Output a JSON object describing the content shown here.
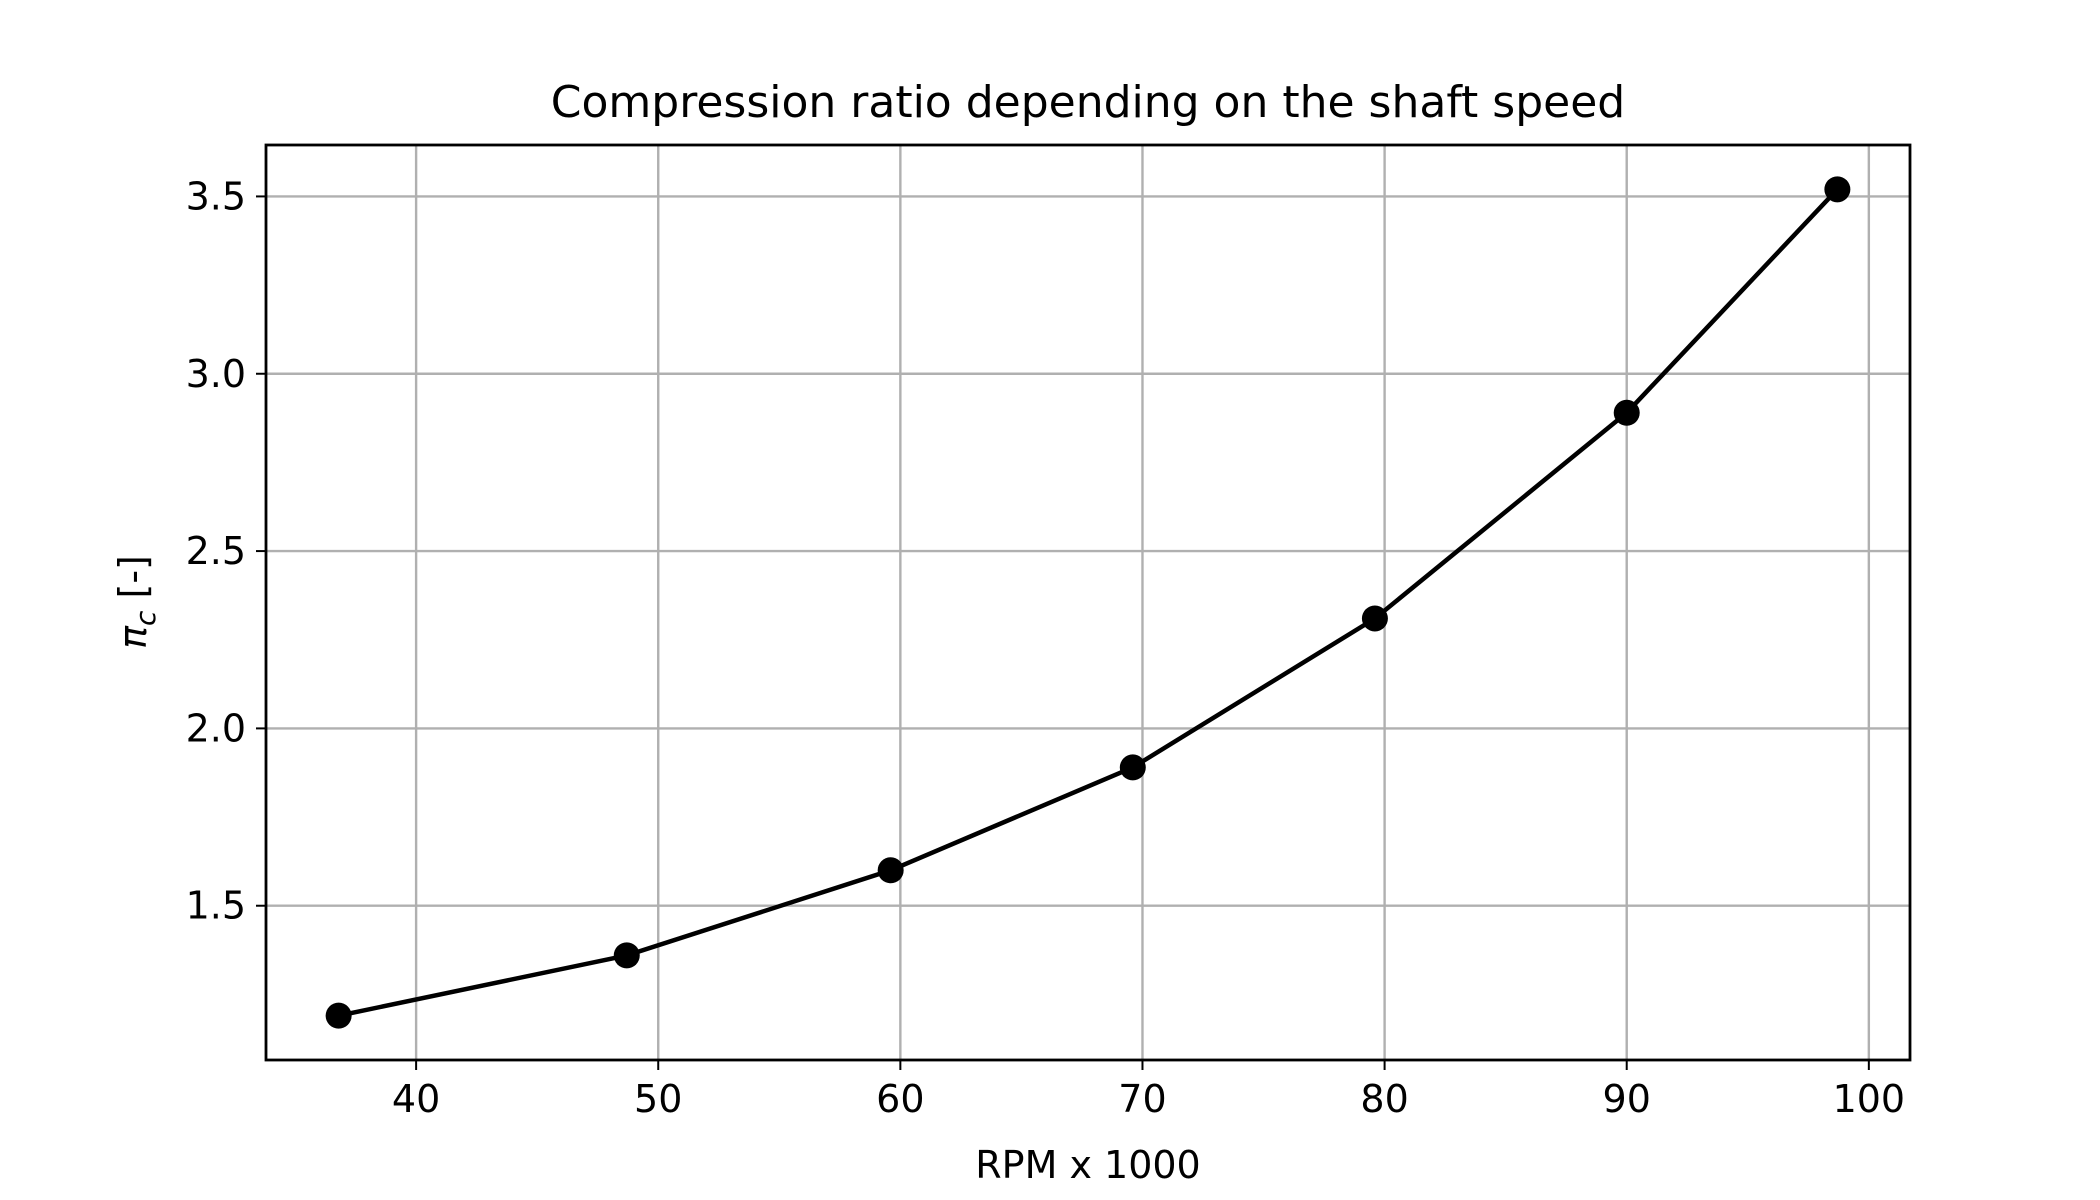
{
  "chart_data": {
    "type": "line",
    "title": "Compression ratio depending on the shaft speed",
    "xlabel": "RPM x 1000",
    "ylabel_symbol": "π",
    "ylabel_subscript": "c",
    "ylabel_unit": " [-]",
    "x": [
      36.8,
      48.7,
      59.6,
      69.6,
      79.6,
      90.0,
      98.7
    ],
    "series": [
      {
        "values": [
          1.19,
          1.36,
          1.6,
          1.89,
          2.31,
          2.89,
          3.52
        ],
        "color": "#000000",
        "marker": "circle"
      }
    ],
    "xlim": [
      33.8,
      101.7
    ],
    "ylim": [
      1.065,
      3.645
    ],
    "xticks": [
      40,
      50,
      60,
      70,
      80,
      90,
      100
    ],
    "yticks": [
      1.5,
      2.0,
      2.5,
      3.0,
      3.5
    ],
    "xtick_labels": [
      "40",
      "50",
      "60",
      "70",
      "80",
      "90",
      "100"
    ],
    "ytick_labels": [
      "1.5",
      "2.0",
      "2.5",
      "3.0",
      "3.5"
    ],
    "grid": true,
    "legend": "none"
  }
}
